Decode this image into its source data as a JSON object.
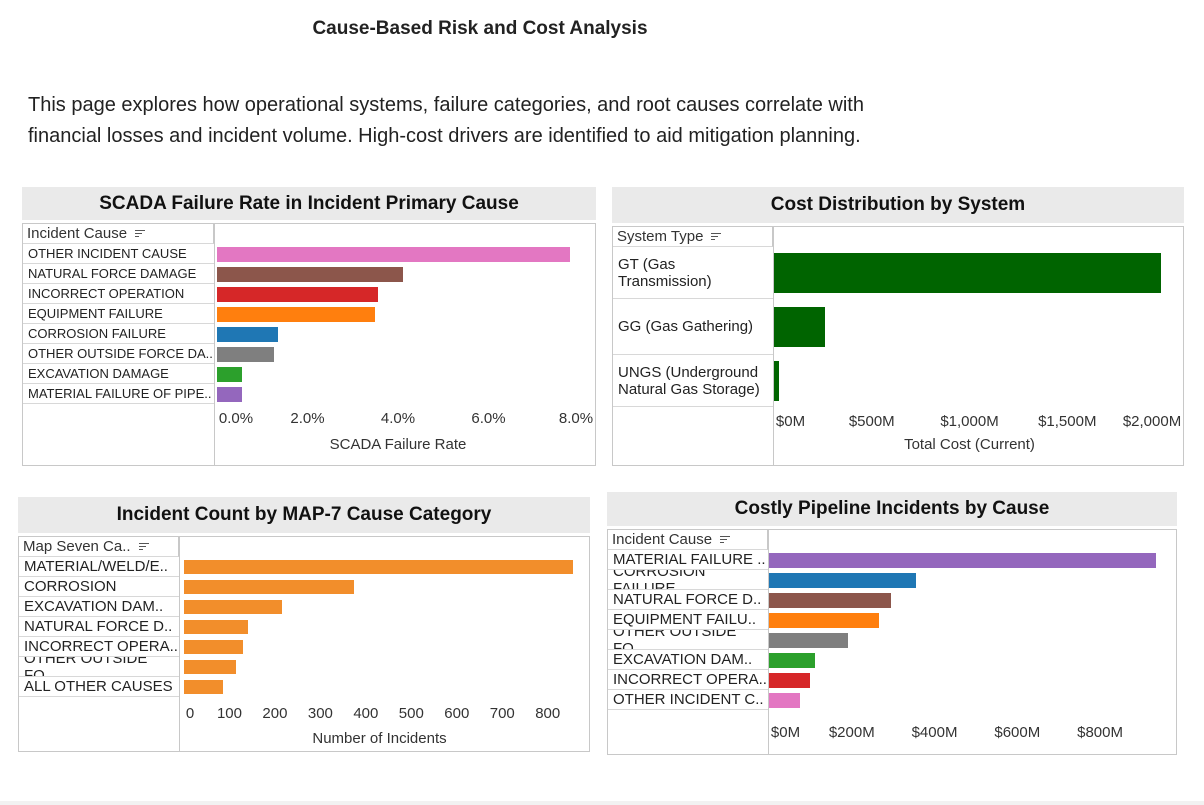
{
  "page": {
    "title": "Cause-Based Risk and Cost Analysis",
    "intro_line1": "This page explores how operational systems, failure categories, and root causes correlate with",
    "intro_line2": "financial losses and incident volume. High-cost drivers are identified to aid mitigation planning."
  },
  "chart_data": [
    {
      "id": "scada",
      "type": "bar",
      "orientation": "horizontal",
      "title": "SCADA Failure Rate in Incident Primary Cause",
      "row_header": "Incident Cause",
      "categories": [
        "OTHER INCIDENT CAUSE",
        "NATURAL FORCE DAMAGE",
        "INCORRECT OPERATION",
        "EQUIPMENT FAILURE",
        "CORROSION FAILURE",
        "OTHER OUTSIDE FORCE DA..",
        "EXCAVATION DAMAGE",
        "MATERIAL FAILURE OF PIPE.."
      ],
      "values": [
        7.8,
        4.1,
        3.55,
        3.5,
        1.35,
        1.25,
        0.55,
        0.55
      ],
      "colors": [
        "#e377c2",
        "#8c564b",
        "#d62728",
        "#ff7f0e",
        "#1f77b4",
        "#7f7f7f",
        "#2ca02c",
        "#9467bd"
      ],
      "xlim": [
        0,
        8.0
      ],
      "xticks": [
        0,
        2,
        4,
        6,
        8
      ],
      "xtick_labels": [
        "0.0%",
        "2.0%",
        "4.0%",
        "6.0%",
        "8.0%"
      ],
      "xlabel": "SCADA Failure Rate"
    },
    {
      "id": "system",
      "type": "bar",
      "orientation": "horizontal",
      "title": "Cost Distribution by System",
      "row_header": "System Type",
      "categories": [
        "GT (Gas\nTransmission)",
        "GG (Gas Gathering)",
        "UNGS (Underground\nNatural Gas Storage)"
      ],
      "values": [
        1980,
        260,
        25
      ],
      "colors": [
        "#006400",
        "#006400",
        "#006400"
      ],
      "xlim": [
        0,
        2000
      ],
      "xticks": [
        0,
        500,
        1000,
        1500,
        2000
      ],
      "xtick_labels": [
        "$0M",
        "$500M",
        "$1,000M",
        "$1,500M",
        "$2,000M"
      ],
      "xlabel": "Total Cost (Current)"
    },
    {
      "id": "map7",
      "type": "bar",
      "orientation": "horizontal",
      "title": "Incident Count by MAP-7 Cause Category",
      "row_header": "Map Seven Ca..",
      "categories": [
        "MATERIAL/WELD/E..",
        "CORROSION",
        "EXCAVATION DAM..",
        "NATURAL FORCE D..",
        "INCORRECT OPERA..",
        "OTHER OUTSIDE FO..",
        "ALL OTHER CAUSES"
      ],
      "values": [
        855,
        375,
        215,
        140,
        130,
        115,
        85
      ],
      "colors": [
        "#f28e2b",
        "#f28e2b",
        "#f28e2b",
        "#f28e2b",
        "#f28e2b",
        "#f28e2b",
        "#f28e2b"
      ],
      "xlim": [
        0,
        860
      ],
      "xticks": [
        0,
        100,
        200,
        300,
        400,
        500,
        600,
        700,
        800
      ],
      "xtick_labels": [
        "0",
        "100",
        "200",
        "300",
        "400",
        "500",
        "600",
        "700",
        "800"
      ],
      "xlabel": "Number of Incidents"
    },
    {
      "id": "costly",
      "type": "bar",
      "orientation": "horizontal",
      "title": "Costly Pipeline Incidents by Cause",
      "row_header": "Incident Cause",
      "categories": [
        "MATERIAL FAILURE ..",
        "CORROSION FAILURE",
        "NATURAL FORCE D..",
        "EQUIPMENT FAILU..",
        "OTHER OUTSIDE FO..",
        "EXCAVATION DAM..",
        "INCORRECT OPERA..",
        "OTHER INCIDENT C.."
      ],
      "values": [
        935,
        355,
        295,
        265,
        190,
        110,
        100,
        75
      ],
      "colors": [
        "#9467bd",
        "#1f77b4",
        "#8c564b",
        "#ff7f0e",
        "#7f7f7f",
        "#2ca02c",
        "#d62728",
        "#e377c2"
      ],
      "xlim": [
        0,
        940
      ],
      "xticks": [
        0,
        200,
        400,
        600,
        800
      ],
      "xtick_labels": [
        "$0M",
        "$200M",
        "$400M",
        "$600M",
        "$800M"
      ],
      "xlabel": ""
    }
  ]
}
